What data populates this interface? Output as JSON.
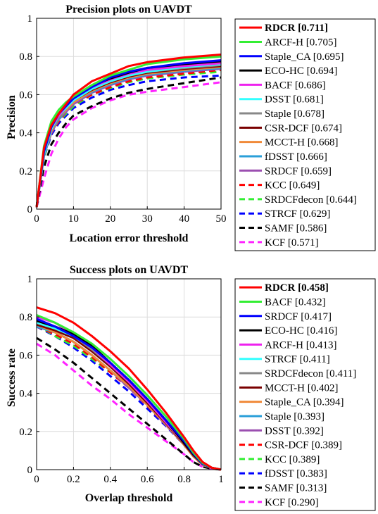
{
  "chart_data": [
    {
      "type": "line",
      "title": "Precision plots on UAVDT",
      "xlabel": "Location error threshold",
      "ylabel": "Precision",
      "xlim": [
        0,
        50
      ],
      "ylim": [
        0,
        1
      ],
      "xticks": [
        "0",
        "10",
        "20",
        "30",
        "40",
        "50"
      ],
      "yticks": [
        "0",
        "0.2",
        "0.4",
        "0.6",
        "0.8",
        "1"
      ],
      "grid": true,
      "legend_position": "outside-right",
      "x": [
        0,
        2,
        4,
        6,
        8,
        10,
        15,
        20,
        25,
        30,
        40,
        50
      ],
      "series": [
        {
          "name": "RDCR [0.711]",
          "color": "#ff0000",
          "dash": "solid",
          "bold": true,
          "values": [
            0.01,
            0.32,
            0.44,
            0.5,
            0.55,
            0.6,
            0.67,
            0.71,
            0.75,
            0.77,
            0.795,
            0.81
          ]
        },
        {
          "name": "ARCF-H [0.705]",
          "color": "#33ee33",
          "dash": "solid",
          "values": [
            0.01,
            0.33,
            0.46,
            0.52,
            0.56,
            0.59,
            0.65,
            0.7,
            0.73,
            0.76,
            0.785,
            0.8
          ]
        },
        {
          "name": "Staple_CA [0.695]",
          "color": "#0000ff",
          "dash": "solid",
          "values": [
            0.01,
            0.3,
            0.43,
            0.5,
            0.54,
            0.58,
            0.64,
            0.69,
            0.72,
            0.74,
            0.765,
            0.78
          ]
        },
        {
          "name": "ECO-HC [0.694]",
          "color": "#000000",
          "dash": "solid",
          "values": [
            0.01,
            0.31,
            0.44,
            0.5,
            0.55,
            0.59,
            0.645,
            0.685,
            0.715,
            0.74,
            0.76,
            0.775
          ]
        },
        {
          "name": "BACF [0.686]",
          "color": "#ee22ee",
          "dash": "solid",
          "values": [
            0.01,
            0.31,
            0.43,
            0.49,
            0.54,
            0.58,
            0.64,
            0.68,
            0.71,
            0.73,
            0.75,
            0.765
          ]
        },
        {
          "name": "DSST [0.681]",
          "color": "#33ffff",
          "dash": "solid",
          "values": [
            0.01,
            0.29,
            0.42,
            0.49,
            0.53,
            0.57,
            0.63,
            0.67,
            0.7,
            0.72,
            0.745,
            0.76
          ]
        },
        {
          "name": "Staple [0.678]",
          "color": "#888888",
          "dash": "solid",
          "values": [
            0.01,
            0.3,
            0.42,
            0.48,
            0.53,
            0.57,
            0.63,
            0.67,
            0.7,
            0.72,
            0.74,
            0.755
          ]
        },
        {
          "name": "CSR-DCF [0.674]",
          "color": "#7a0000",
          "dash": "solid",
          "values": [
            0.01,
            0.29,
            0.42,
            0.48,
            0.53,
            0.57,
            0.625,
            0.665,
            0.695,
            0.715,
            0.735,
            0.75
          ]
        },
        {
          "name": "MCCT-H [0.668]",
          "color": "#f08a3a",
          "dash": "solid",
          "values": [
            0.01,
            0.29,
            0.41,
            0.48,
            0.52,
            0.56,
            0.62,
            0.66,
            0.69,
            0.71,
            0.73,
            0.745
          ]
        },
        {
          "name": "fDSST [0.666]",
          "color": "#2a9fd8",
          "dash": "solid",
          "values": [
            0.01,
            0.28,
            0.41,
            0.47,
            0.52,
            0.56,
            0.615,
            0.655,
            0.685,
            0.705,
            0.725,
            0.74
          ]
        },
        {
          "name": "SRDCF [0.659]",
          "color": "#9b4fb0",
          "dash": "solid",
          "values": [
            0.01,
            0.28,
            0.4,
            0.47,
            0.51,
            0.55,
            0.61,
            0.65,
            0.68,
            0.7,
            0.72,
            0.735
          ]
        },
        {
          "name": "KCC [0.649]",
          "color": "#ff0000",
          "dash": "dashed",
          "values": [
            0.01,
            0.28,
            0.4,
            0.46,
            0.51,
            0.55,
            0.6,
            0.64,
            0.67,
            0.69,
            0.71,
            0.73
          ]
        },
        {
          "name": "SRDCFdecon [0.644]",
          "color": "#33ee33",
          "dash": "dashed",
          "values": [
            0.01,
            0.27,
            0.4,
            0.46,
            0.5,
            0.54,
            0.6,
            0.635,
            0.665,
            0.685,
            0.705,
            0.72
          ]
        },
        {
          "name": "STRCF [0.629]",
          "color": "#0000ff",
          "dash": "dashed",
          "values": [
            0.01,
            0.27,
            0.39,
            0.45,
            0.49,
            0.53,
            0.585,
            0.625,
            0.65,
            0.67,
            0.69,
            0.7
          ]
        },
        {
          "name": "SAMF [0.586]",
          "color": "#000000",
          "dash": "dashed",
          "values": [
            0.01,
            0.22,
            0.34,
            0.4,
            0.45,
            0.49,
            0.54,
            0.58,
            0.61,
            0.63,
            0.66,
            0.69
          ]
        },
        {
          "name": "KCF [0.571]",
          "color": "#ff22ff",
          "dash": "dashed",
          "values": [
            0.01,
            0.16,
            0.29,
            0.37,
            0.43,
            0.47,
            0.53,
            0.57,
            0.6,
            0.615,
            0.64,
            0.665
          ]
        }
      ]
    },
    {
      "type": "line",
      "title": "Success plots on UAVDT",
      "xlabel": "Overlap threshold",
      "ylabel": "Success rate",
      "xlim": [
        0,
        1
      ],
      "ylim": [
        0,
        1
      ],
      "xticks": [
        "0",
        "0.2",
        "0.4",
        "0.6",
        "0.8",
        "1"
      ],
      "yticks": [
        "0",
        "0.2",
        "0.4",
        "0.6",
        "0.8",
        "1"
      ],
      "grid": true,
      "legend_position": "outside-right",
      "x": [
        0,
        0.1,
        0.2,
        0.3,
        0.4,
        0.5,
        0.6,
        0.7,
        0.8,
        0.85,
        0.9,
        0.95,
        1.0
      ],
      "series": [
        {
          "name": "RDCR [0.458]",
          "color": "#ff0000",
          "dash": "solid",
          "bold": true,
          "values": [
            0.85,
            0.82,
            0.77,
            0.7,
            0.62,
            0.53,
            0.42,
            0.3,
            0.17,
            0.1,
            0.04,
            0.01,
            0.0
          ]
        },
        {
          "name": "BACF [0.432]",
          "color": "#33ee33",
          "dash": "solid",
          "values": [
            0.81,
            0.77,
            0.72,
            0.66,
            0.58,
            0.49,
            0.39,
            0.28,
            0.16,
            0.09,
            0.035,
            0.01,
            0.0
          ]
        },
        {
          "name": "SRDCF [0.417]",
          "color": "#0000ff",
          "dash": "solid",
          "values": [
            0.79,
            0.75,
            0.7,
            0.64,
            0.56,
            0.47,
            0.37,
            0.26,
            0.15,
            0.085,
            0.03,
            0.01,
            0.0
          ]
        },
        {
          "name": "ECO-HC [0.416]",
          "color": "#000000",
          "dash": "solid",
          "values": [
            0.78,
            0.75,
            0.71,
            0.65,
            0.56,
            0.47,
            0.37,
            0.26,
            0.14,
            0.08,
            0.03,
            0.01,
            0.0
          ]
        },
        {
          "name": "ARCF-H [0.413]",
          "color": "#ee22ee",
          "dash": "solid",
          "values": [
            0.8,
            0.77,
            0.71,
            0.64,
            0.55,
            0.46,
            0.36,
            0.25,
            0.14,
            0.08,
            0.03,
            0.01,
            0.0
          ]
        },
        {
          "name": "STRCF [0.411]",
          "color": "#33ffff",
          "dash": "solid",
          "values": [
            0.77,
            0.74,
            0.7,
            0.64,
            0.55,
            0.46,
            0.36,
            0.25,
            0.14,
            0.08,
            0.03,
            0.01,
            0.0
          ]
        },
        {
          "name": "SRDCFdecon [0.411]",
          "color": "#888888",
          "dash": "solid",
          "values": [
            0.77,
            0.74,
            0.7,
            0.63,
            0.55,
            0.46,
            0.36,
            0.25,
            0.14,
            0.08,
            0.03,
            0.01,
            0.0
          ]
        },
        {
          "name": "MCCT-H [0.402]",
          "color": "#7a0000",
          "dash": "solid",
          "values": [
            0.76,
            0.73,
            0.69,
            0.62,
            0.54,
            0.45,
            0.35,
            0.245,
            0.135,
            0.075,
            0.03,
            0.01,
            0.0
          ]
        },
        {
          "name": "Staple_CA [0.394]",
          "color": "#f08a3a",
          "dash": "solid",
          "values": [
            0.76,
            0.72,
            0.67,
            0.6,
            0.52,
            0.44,
            0.34,
            0.24,
            0.13,
            0.07,
            0.025,
            0.01,
            0.0
          ]
        },
        {
          "name": "Staple [0.393]",
          "color": "#2a9fd8",
          "dash": "solid",
          "values": [
            0.75,
            0.72,
            0.67,
            0.6,
            0.52,
            0.44,
            0.34,
            0.24,
            0.13,
            0.07,
            0.025,
            0.01,
            0.0
          ]
        },
        {
          "name": "DSST [0.392]",
          "color": "#9b4fb0",
          "dash": "solid",
          "values": [
            0.75,
            0.72,
            0.67,
            0.6,
            0.52,
            0.43,
            0.34,
            0.235,
            0.13,
            0.07,
            0.025,
            0.01,
            0.0
          ]
        },
        {
          "name": "CSR-DCF [0.389]",
          "color": "#ff0000",
          "dash": "dashed",
          "values": [
            0.75,
            0.71,
            0.66,
            0.59,
            0.51,
            0.43,
            0.335,
            0.235,
            0.13,
            0.07,
            0.025,
            0.01,
            0.0
          ]
        },
        {
          "name": "KCC [0.389]",
          "color": "#33ee33",
          "dash": "dashed",
          "values": [
            0.76,
            0.7,
            0.65,
            0.58,
            0.51,
            0.43,
            0.34,
            0.24,
            0.13,
            0.07,
            0.025,
            0.01,
            0.0
          ]
        },
        {
          "name": "fDSST [0.383]",
          "color": "#0000ff",
          "dash": "dashed",
          "values": [
            0.75,
            0.7,
            0.64,
            0.57,
            0.49,
            0.41,
            0.32,
            0.23,
            0.13,
            0.07,
            0.025,
            0.01,
            0.0
          ]
        },
        {
          "name": "SAMF [0.313]",
          "color": "#000000",
          "dash": "dashed",
          "values": [
            0.69,
            0.63,
            0.56,
            0.48,
            0.4,
            0.32,
            0.24,
            0.16,
            0.08,
            0.04,
            0.015,
            0.005,
            0.0
          ]
        },
        {
          "name": "KCF [0.290]",
          "color": "#ff22ff",
          "dash": "dashed",
          "values": [
            0.66,
            0.6,
            0.52,
            0.44,
            0.37,
            0.29,
            0.22,
            0.15,
            0.08,
            0.04,
            0.015,
            0.005,
            0.0
          ]
        }
      ]
    }
  ]
}
